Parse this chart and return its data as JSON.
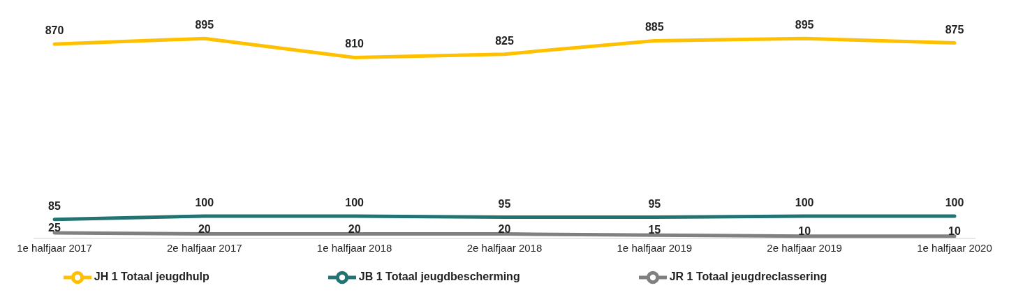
{
  "chart_data": {
    "type": "line",
    "categories": [
      "1e halfjaar 2017",
      "2e halfjaar 2017",
      "1e halfjaar 2018",
      "2e halfjaar 2018",
      "1e halfjaar 2019",
      "2e halfjaar 2019",
      "1e halfjaar 2020"
    ],
    "series": [
      {
        "name": "JH 1 Totaal jeugdhulp",
        "color": "#ffc000",
        "values": [
          870,
          895,
          810,
          825,
          885,
          895,
          875
        ]
      },
      {
        "name": "JB 1 Totaal jeugdbescherming",
        "color": "#237373",
        "values": [
          85,
          100,
          100,
          95,
          95,
          100,
          100
        ]
      },
      {
        "name": "JR 1 Totaal jeugdreclassering",
        "color": "#808080",
        "values": [
          25,
          20,
          20,
          20,
          15,
          10,
          10
        ]
      }
    ],
    "data_labels": true,
    "legend": "bottom",
    "grid": false,
    "marker": "none",
    "line_style": "solid"
  }
}
